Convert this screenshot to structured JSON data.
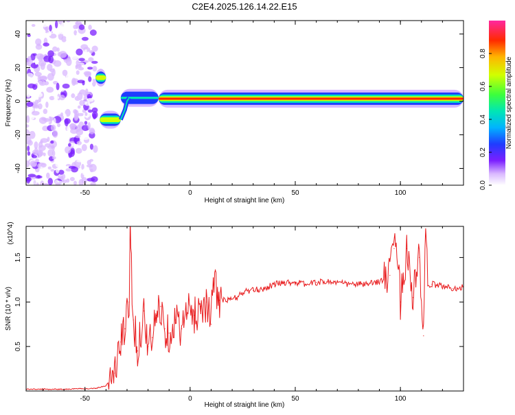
{
  "title": "C2E4.2025.126.14.22.E15",
  "chart_data": [
    {
      "type": "heatmap",
      "xlabel": "Height of straight line (km)",
      "ylabel": "Frequency (Hz)",
      "xlim": [
        -78,
        130
      ],
      "ylim": [
        -50,
        48
      ],
      "x_ticks": [
        "-50",
        "0",
        "50",
        "100"
      ],
      "y_ticks": [
        "-40",
        "-20",
        "0",
        "20",
        "40"
      ],
      "colorbar": {
        "label": "Normalized spectral amplitude",
        "range": [
          0,
          1
        ],
        "ticks": [
          "0.0",
          "0.2",
          "0.4",
          "0.6",
          "0.8"
        ]
      },
      "features": [
        {
          "x_range": [
            -78,
            -45
          ],
          "freq_range": [
            -50,
            48
          ],
          "amplitude": 0.1,
          "description_kind": "scattered noise"
        },
        {
          "x_range": [
            -45,
            -40
          ],
          "freq": 14,
          "amplitude": 0.75
        },
        {
          "x_range": [
            -43,
            -33
          ],
          "freq": -11,
          "amplitude": 0.75
        },
        {
          "x_range": [
            -33,
            -15
          ],
          "freq": 2,
          "amplitude": 0.45
        },
        {
          "x_range": [
            -15,
            130
          ],
          "freq": 1.5,
          "amplitude": 0.95
        }
      ]
    },
    {
      "type": "line",
      "xlabel": "Height of straight line (km)",
      "ylabel": "SNR (10 * v/v)",
      "scale_note": "(x10^4)",
      "xlim": [
        -78,
        130
      ],
      "ylim": [
        0,
        1.85
      ],
      "x_ticks": [
        "-50",
        "0",
        "50",
        "100"
      ],
      "y_ticks": [
        "0.5",
        "1.0",
        "1.5"
      ],
      "series": [
        {
          "color": "#e8191b",
          "x": [
            -78,
            -60,
            -45,
            -40,
            -36,
            -33,
            -31,
            -29,
            -28.5,
            -27,
            -25,
            -22,
            -20,
            -18,
            -16,
            -14,
            -12,
            -10,
            -7,
            -4,
            -1,
            2,
            5,
            8,
            10,
            11,
            14,
            18,
            22,
            26,
            30,
            35,
            40,
            45,
            50,
            55,
            60,
            65,
            70,
            75,
            80,
            85,
            88,
            92,
            95,
            97,
            98,
            100,
            103,
            106,
            109,
            111,
            112,
            113,
            115,
            120,
            125,
            130
          ],
          "y": [
            0.02,
            0.02,
            0.03,
            0.06,
            0.2,
            0.55,
            0.7,
            1.0,
            1.78,
            0.8,
            0.45,
            0.9,
            0.5,
            0.6,
            0.85,
            0.95,
            0.7,
            0.65,
            0.8,
            0.7,
            0.9,
            0.85,
            0.95,
            1.0,
            0.75,
            1.27,
            1.02,
            1.02,
            1.05,
            1.12,
            1.13,
            1.15,
            1.2,
            1.22,
            1.22,
            1.2,
            1.22,
            1.23,
            1.22,
            1.2,
            1.2,
            1.2,
            1.22,
            1.25,
            1.3,
            1.6,
            1.85,
            1.0,
            1.6,
            1.05,
            1.5,
            0.62,
            1.8,
            1.18,
            1.2,
            1.18,
            1.15,
            1.17
          ]
        }
      ]
    }
  ]
}
